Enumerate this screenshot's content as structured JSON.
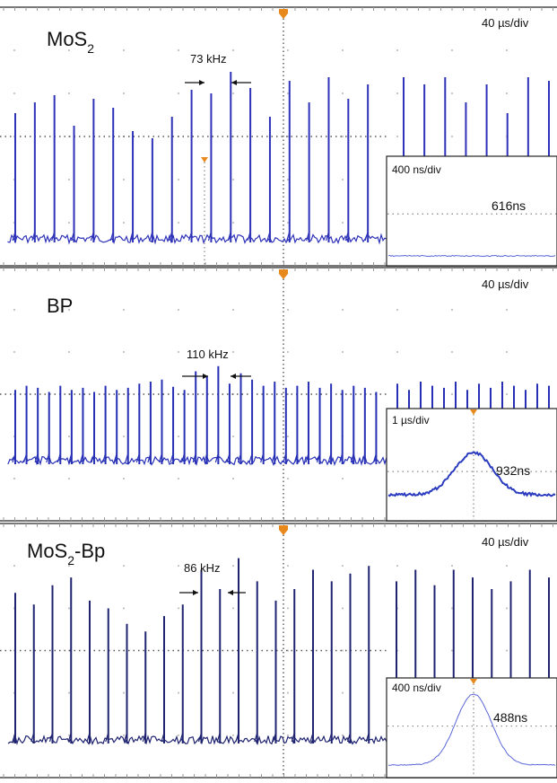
{
  "panels": [
    {
      "sample_base": "MoS",
      "sample_sub": "2",
      "sample_tail": "",
      "timebase": "40 µs/div",
      "rep_rate": "73 kHz",
      "inset_timebase": "400 ns/div",
      "pulse_width": "616ns",
      "trace_color": "#2e32b8",
      "inset_color": "#5a66d8"
    },
    {
      "sample_base": "BP",
      "sample_sub": "",
      "sample_tail": "",
      "timebase": "40 µs/div",
      "rep_rate": "110 kHz",
      "inset_timebase": "1 µs/div",
      "pulse_width": "932ns",
      "trace_color": "#2730b5",
      "inset_color": "#2a3bbf"
    },
    {
      "sample_base": "MoS",
      "sample_sub": "2",
      "sample_tail": "-Bp",
      "timebase": "40 µs/div",
      "rep_rate": "86 kHz",
      "inset_timebase": "400 ns/div",
      "pulse_width": "488ns",
      "trace_color": "#1f2370",
      "inset_color": "#5a66d8"
    }
  ],
  "colors": {
    "grid": "#9a9a9a",
    "trigger_marker": "#e8891c",
    "text": "#111111"
  },
  "chart_data": [
    {
      "type": "line",
      "title": "MoS2",
      "x_unit": "40 µs/div",
      "repetition_rate_khz": 73,
      "pulse_count_main": 19,
      "pulse_count_after_inset_gap": 8,
      "pulse_heights_rel": [
        0.72,
        0.78,
        0.82,
        0.65,
        0.8,
        0.75,
        0.62,
        0.58,
        0.7,
        0.85,
        0.83,
        0.95,
        0.86,
        0.7,
        0.9,
        0.78,
        0.92,
        0.8,
        0.88,
        0.92,
        0.88,
        0.92,
        0.78,
        0.88,
        0.72,
        0.92,
        0.9
      ],
      "inset": {
        "x_unit": "400 ns/div",
        "pulse_width_ns": 616
      }
    },
    {
      "type": "line",
      "title": "BP",
      "x_unit": "40 µs/div",
      "repetition_rate_khz": 110,
      "pulse_count_main": 33,
      "pulse_count_after_inset_gap": 14,
      "pulse_heights_rel": [
        0.72,
        0.76,
        0.74,
        0.7,
        0.76,
        0.72,
        0.74,
        0.7,
        0.76,
        0.72,
        0.74,
        0.78,
        0.8,
        0.82,
        0.75,
        0.72,
        0.9,
        0.85,
        0.95,
        0.78,
        0.88,
        0.82,
        0.76,
        0.8,
        0.74,
        0.76,
        0.8,
        0.74,
        0.78,
        0.72,
        0.76,
        0.74,
        0.7,
        0.78,
        0.72,
        0.8,
        0.76,
        0.74,
        0.8,
        0.72,
        0.78,
        0.74,
        0.8,
        0.76,
        0.72,
        0.78,
        0.76
      ],
      "inset": {
        "x_unit": "1 µs/div",
        "pulse_width_ns": 932
      }
    },
    {
      "type": "line",
      "title": "MoS2-Bp",
      "x_unit": "40 µs/div",
      "repetition_rate_khz": 86,
      "pulse_count_main": 20,
      "pulse_count_after_inset_gap": 9,
      "pulse_heights_rel": [
        0.78,
        0.72,
        0.82,
        0.86,
        0.74,
        0.7,
        0.62,
        0.58,
        0.66,
        0.72,
        0.9,
        0.8,
        0.96,
        0.84,
        0.74,
        0.8,
        0.9,
        0.84,
        0.88,
        0.92,
        0.84,
        0.9,
        0.82,
        0.9,
        0.86,
        0.8,
        0.84,
        0.9,
        0.86
      ],
      "inset": {
        "x_unit": "400 ns/div",
        "pulse_width_ns": 488
      }
    }
  ]
}
